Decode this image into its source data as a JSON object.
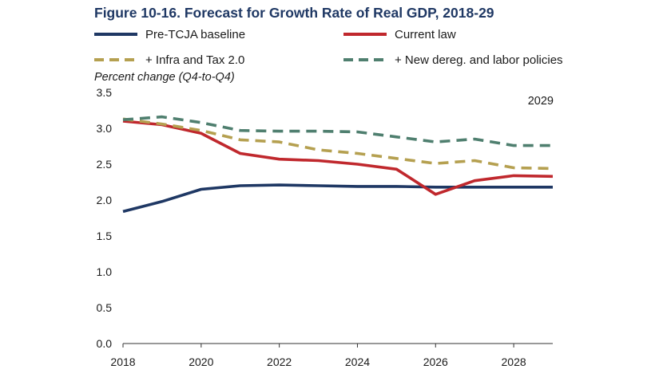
{
  "chart_data": {
    "type": "line",
    "title": "Figure 10-16. Forecast for Growth Rate of Real GDP, 2018-29",
    "ylabel": "Percent change (Q4-to-Q4)",
    "xlabel": "",
    "xlim": [
      2018,
      2029
    ],
    "ylim": [
      0,
      3.5
    ],
    "x_ticks": [
      2018,
      2020,
      2022,
      2024,
      2026,
      2028
    ],
    "y_ticks": [
      "0.0",
      "0.5",
      "1.0",
      "1.5",
      "2.0",
      "2.5",
      "3.0",
      "3.5"
    ],
    "annotation": "2029",
    "legend_position": "top",
    "grid": false,
    "x": [
      2018,
      2019,
      2020,
      2021,
      2022,
      2023,
      2024,
      2025,
      2026,
      2027,
      2028,
      2029
    ],
    "series": [
      {
        "name": "Pre-TCJA baseline",
        "color": "#1f3864",
        "style": "solid",
        "values": [
          1.84,
          1.98,
          2.15,
          2.2,
          2.21,
          2.2,
          2.19,
          2.19,
          2.18,
          2.18,
          2.18,
          2.18
        ]
      },
      {
        "name": "Current law",
        "color": "#c0282d",
        "style": "solid",
        "values": [
          3.1,
          3.05,
          2.93,
          2.65,
          2.57,
          2.55,
          2.5,
          2.43,
          2.08,
          2.27,
          2.34,
          2.33
        ]
      },
      {
        "name": "+ Infra and Tax 2.0",
        "color": "#b5a050",
        "style": "dashed",
        "values": [
          3.13,
          3.06,
          2.97,
          2.84,
          2.81,
          2.7,
          2.65,
          2.58,
          2.51,
          2.55,
          2.45,
          2.44
        ]
      },
      {
        "name": "+ New dereg. and labor policies",
        "color": "#4f7f6f",
        "style": "dashed",
        "values": [
          3.12,
          3.16,
          3.08,
          2.97,
          2.96,
          2.96,
          2.95,
          2.88,
          2.81,
          2.85,
          2.76,
          2.76
        ]
      }
    ]
  }
}
